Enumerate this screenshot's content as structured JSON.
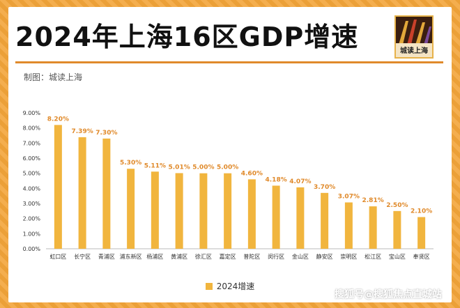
{
  "header": {
    "title": "2024年上海16区GDP增速",
    "logo_text": "城读上海"
  },
  "chart_meta": {
    "subtitle": "制图：城读上海",
    "footer": "搜狐号@搜狐焦点直城站"
  },
  "colors": {
    "bar": "#f1b53e",
    "label": "#e08a2b"
  },
  "chart_data": {
    "type": "bar",
    "title": "2024年上海16区GDP增速",
    "categories": [
      "虹口区",
      "长宁区",
      "青浦区",
      "浦东新区",
      "杨浦区",
      "黄浦区",
      "徐汇区",
      "嘉定区",
      "普陀区",
      "闵行区",
      "金山区",
      "静安区",
      "崇明区",
      "松江区",
      "宝山区",
      "奉贤区"
    ],
    "series": [
      {
        "name": "2024增速",
        "values": [
          8.2,
          7.39,
          7.3,
          5.3,
          5.11,
          5.01,
          5.0,
          5.0,
          4.6,
          4.18,
          4.07,
          3.7,
          3.07,
          2.81,
          2.5,
          2.1
        ]
      }
    ],
    "value_labels": [
      "8.20%",
      "7.39%",
      "7.30%",
      "5.30%",
      "5.11%",
      "5.01%",
      "5.00%",
      "5.00%",
      "4.60%",
      "4.18%",
      "4.07%",
      "3.70%",
      "3.07%",
      "2.81%",
      "2.50%",
      "2.10%"
    ],
    "y_ticks": [
      "0.00%",
      "1.00%",
      "2.00%",
      "3.00%",
      "4.00%",
      "5.00%",
      "6.00%",
      "7.00%",
      "8.00%",
      "9.00%"
    ],
    "ylim": [
      0,
      9
    ],
    "legend_position": "bottom",
    "grid": false
  }
}
